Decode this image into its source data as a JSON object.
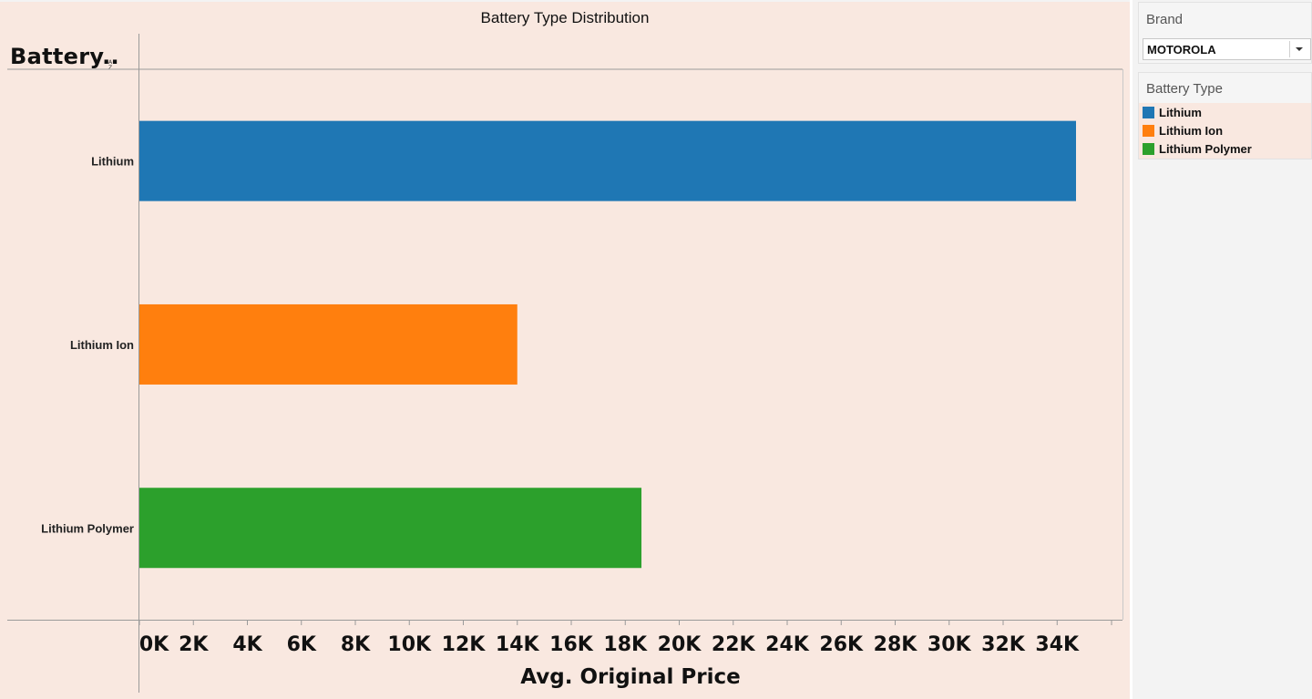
{
  "chart_data": {
    "type": "bar",
    "orientation": "horizontal",
    "title": "Battery Type Distribution",
    "row_header": "Battery..",
    "xlabel": "Avg. Original Price",
    "categories": [
      "Lithium",
      "Lithium Ion",
      "Lithium Polymer"
    ],
    "values": [
      34700,
      14000,
      18600
    ],
    "colors": [
      "#1f77b4",
      "#ff7f0e",
      "#2ca02c"
    ],
    "xlim": [
      0,
      36000
    ],
    "x_ticks": [
      {
        "value": 0,
        "label": "0K"
      },
      {
        "value": 2000,
        "label": "2K"
      },
      {
        "value": 4000,
        "label": "4K"
      },
      {
        "value": 6000,
        "label": "6K"
      },
      {
        "value": 8000,
        "label": "8K"
      },
      {
        "value": 10000,
        "label": "10K"
      },
      {
        "value": 12000,
        "label": "12K"
      },
      {
        "value": 14000,
        "label": "14K"
      },
      {
        "value": 16000,
        "label": "16K"
      },
      {
        "value": 18000,
        "label": "18K"
      },
      {
        "value": 20000,
        "label": "20K"
      },
      {
        "value": 22000,
        "label": "22K"
      },
      {
        "value": 24000,
        "label": "24K"
      },
      {
        "value": 26000,
        "label": "26K"
      },
      {
        "value": 28000,
        "label": "28K"
      },
      {
        "value": 30000,
        "label": "30K"
      },
      {
        "value": 32000,
        "label": "32K"
      },
      {
        "value": 34000,
        "label": "34K"
      }
    ],
    "grid": false,
    "legend_position": "right"
  },
  "filters": {
    "brand": {
      "title": "Brand",
      "selected": "MOTOROLA"
    }
  },
  "legend": {
    "title": "Battery Type",
    "items": [
      {
        "label": "Lithium",
        "color": "#1f77b4"
      },
      {
        "label": "Lithium Ion",
        "color": "#ff7f0e"
      },
      {
        "label": "Lithium Polymer",
        "color": "#2ca02c"
      }
    ]
  }
}
